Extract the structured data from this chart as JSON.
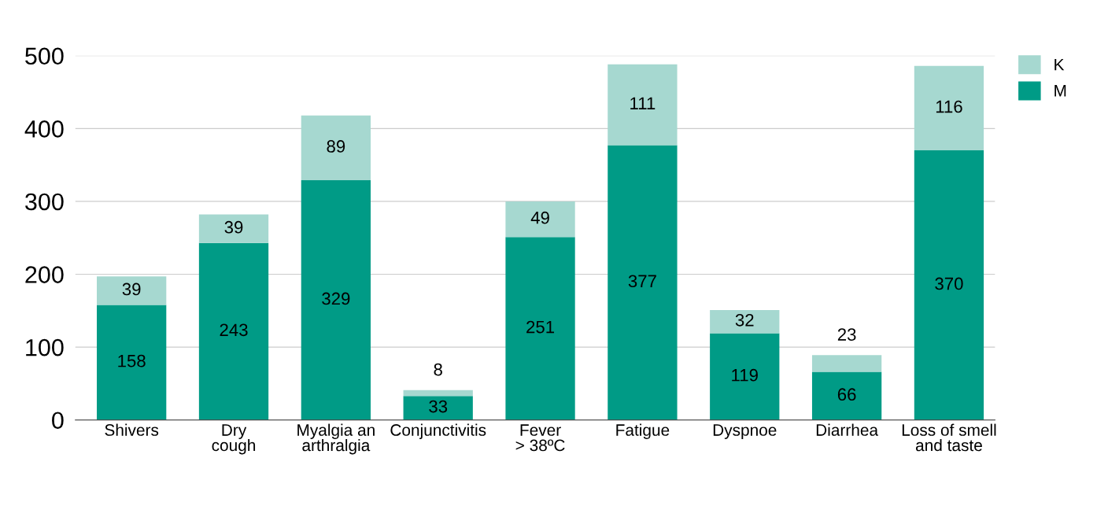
{
  "chart_data": {
    "type": "bar",
    "stacked": true,
    "categories": [
      "Shivers",
      "Dry\ncough",
      "Myalgia an\narthralgia",
      "Conjunctivitis",
      "Fever\n> 38ºC",
      "Fatigue",
      "Dyspnoe",
      "Diarrhea",
      "Loss of smell\nand taste"
    ],
    "series": [
      {
        "name": "M",
        "color": "#009b86",
        "values": [
          158,
          243,
          329,
          33,
          251,
          377,
          119,
          66,
          370
        ]
      },
      {
        "name": "K",
        "color": "#a6d8d0",
        "values": [
          39,
          39,
          89,
          8,
          49,
          111,
          32,
          23,
          116
        ]
      }
    ],
    "ylim": [
      0,
      500
    ],
    "yticks": [
      0,
      100,
      200,
      300,
      400,
      500
    ],
    "grid": "y",
    "legend": "top right",
    "data_labels": true
  }
}
